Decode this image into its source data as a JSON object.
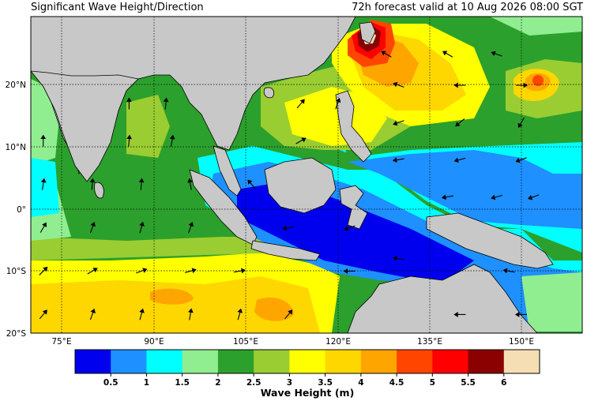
{
  "header": {
    "title_left": "Significant Wave Height/Direction",
    "title_right": "72h forecast valid at 10 Aug 2026 08:00 SGT"
  },
  "axes": {
    "lon_labels": [
      "75°E",
      "90°E",
      "105°E",
      "120°E",
      "135°E",
      "150°E"
    ],
    "lat_labels": [
      "20°N",
      "10°N",
      "0°",
      "10°S",
      "20°S"
    ],
    "grid": "dotted"
  },
  "colorbar": {
    "label": "Wave Height (m)",
    "tick_labels": [
      "0.5",
      "1",
      "1.5",
      "2",
      "2.5",
      "3",
      "3.5",
      "4",
      "4.5",
      "5",
      "5.5",
      "6"
    ],
    "colors": [
      "#0000ee",
      "#1e90ff",
      "#00ffff",
      "#90ee90",
      "#2ca02c",
      "#9acd32",
      "#ffff00",
      "#ffd700",
      "#ffa500",
      "#ff4500",
      "#ff0000",
      "#8b0000",
      "#f5deb3"
    ]
  },
  "map": {
    "land_color": "#c8c8c8",
    "wave_field": [
      {
        "id": "indian-ocean-swell",
        "range_m": "3.5–4",
        "color": "#ffd700"
      },
      {
        "id": "bay-of-bengal",
        "range_m": "2–2.5",
        "color": "#2ca02c"
      },
      {
        "id": "indonesian-seas",
        "range_m": "0–1",
        "color": "#0000ee"
      },
      {
        "id": "south-china-sea",
        "range_m": "3–3.5",
        "color": "#ffff00"
      },
      {
        "id": "taiwan-storm",
        "range_m": "5–6",
        "color": "#8b0000"
      },
      {
        "id": "pacific-storm",
        "range_m": "4.5–5",
        "color": "#ff4500"
      }
    ],
    "direction_arrows": [
      {
        "lon": 72,
        "lat": -17,
        "dir_deg": 40
      },
      {
        "lon": 80,
        "lat": -17,
        "dir_deg": 20
      },
      {
        "lon": 88,
        "lat": -17,
        "dir_deg": 15
      },
      {
        "lon": 96,
        "lat": -17,
        "dir_deg": 10
      },
      {
        "lon": 104,
        "lat": -17,
        "dir_deg": 15
      },
      {
        "lon": 112,
        "lat": -17,
        "dir_deg": 40
      },
      {
        "lon": 140,
        "lat": -17,
        "dir_deg": 270
      },
      {
        "lon": 150,
        "lat": -17,
        "dir_deg": 270
      },
      {
        "lon": 72,
        "lat": -10,
        "dir_deg": 45
      },
      {
        "lon": 80,
        "lat": -10,
        "dir_deg": 60
      },
      {
        "lon": 88,
        "lat": -10,
        "dir_deg": 70
      },
      {
        "lon": 96,
        "lat": -10,
        "dir_deg": 75
      },
      {
        "lon": 104,
        "lat": -10,
        "dir_deg": 80
      },
      {
        "lon": 122,
        "lat": -10,
        "dir_deg": 270
      },
      {
        "lon": 130,
        "lat": -8,
        "dir_deg": 280
      },
      {
        "lon": 148,
        "lat": -10,
        "dir_deg": 280
      },
      {
        "lon": 72,
        "lat": -3,
        "dir_deg": 30
      },
      {
        "lon": 80,
        "lat": -3,
        "dir_deg": 20
      },
      {
        "lon": 88,
        "lat": -3,
        "dir_deg": 15
      },
      {
        "lon": 96,
        "lat": -3,
        "dir_deg": 20
      },
      {
        "lon": 112,
        "lat": -3,
        "dir_deg": 260
      },
      {
        "lon": 122,
        "lat": -3,
        "dir_deg": 250
      },
      {
        "lon": 138,
        "lat": 2,
        "dir_deg": 260
      },
      {
        "lon": 146,
        "lat": 2,
        "dir_deg": 255
      },
      {
        "lon": 152,
        "lat": 2,
        "dir_deg": 250
      },
      {
        "lon": 72,
        "lat": 4,
        "dir_deg": 10
      },
      {
        "lon": 80,
        "lat": 4,
        "dir_deg": 5
      },
      {
        "lon": 88,
        "lat": 4,
        "dir_deg": 5
      },
      {
        "lon": 96,
        "lat": 4,
        "dir_deg": 350
      },
      {
        "lon": 106,
        "lat": 4,
        "dir_deg": 320
      },
      {
        "lon": 130,
        "lat": 8,
        "dir_deg": 260
      },
      {
        "lon": 140,
        "lat": 8,
        "dir_deg": 255
      },
      {
        "lon": 150,
        "lat": 8,
        "dir_deg": 250
      },
      {
        "lon": 72,
        "lat": 11,
        "dir_deg": 0
      },
      {
        "lon": 86,
        "lat": 11,
        "dir_deg": 5
      },
      {
        "lon": 93,
        "lat": 11,
        "dir_deg": 10
      },
      {
        "lon": 114,
        "lat": 11,
        "dir_deg": 60
      },
      {
        "lon": 130,
        "lat": 14,
        "dir_deg": 250
      },
      {
        "lon": 140,
        "lat": 14,
        "dir_deg": 230
      },
      {
        "lon": 150,
        "lat": 14,
        "dir_deg": 210
      },
      {
        "lon": 86,
        "lat": 17,
        "dir_deg": 0
      },
      {
        "lon": 92,
        "lat": 17,
        "dir_deg": 5
      },
      {
        "lon": 114,
        "lat": 17,
        "dir_deg": 40
      },
      {
        "lon": 120,
        "lat": 17,
        "dir_deg": 20
      },
      {
        "lon": 130,
        "lat": 20,
        "dir_deg": 290
      },
      {
        "lon": 140,
        "lat": 20,
        "dir_deg": 270
      },
      {
        "lon": 150,
        "lat": 20,
        "dir_deg": 90
      },
      {
        "lon": 128,
        "lat": 25,
        "dir_deg": 300
      },
      {
        "lon": 138,
        "lat": 25,
        "dir_deg": 300
      },
      {
        "lon": 146,
        "lat": 25,
        "dir_deg": 290
      }
    ]
  }
}
